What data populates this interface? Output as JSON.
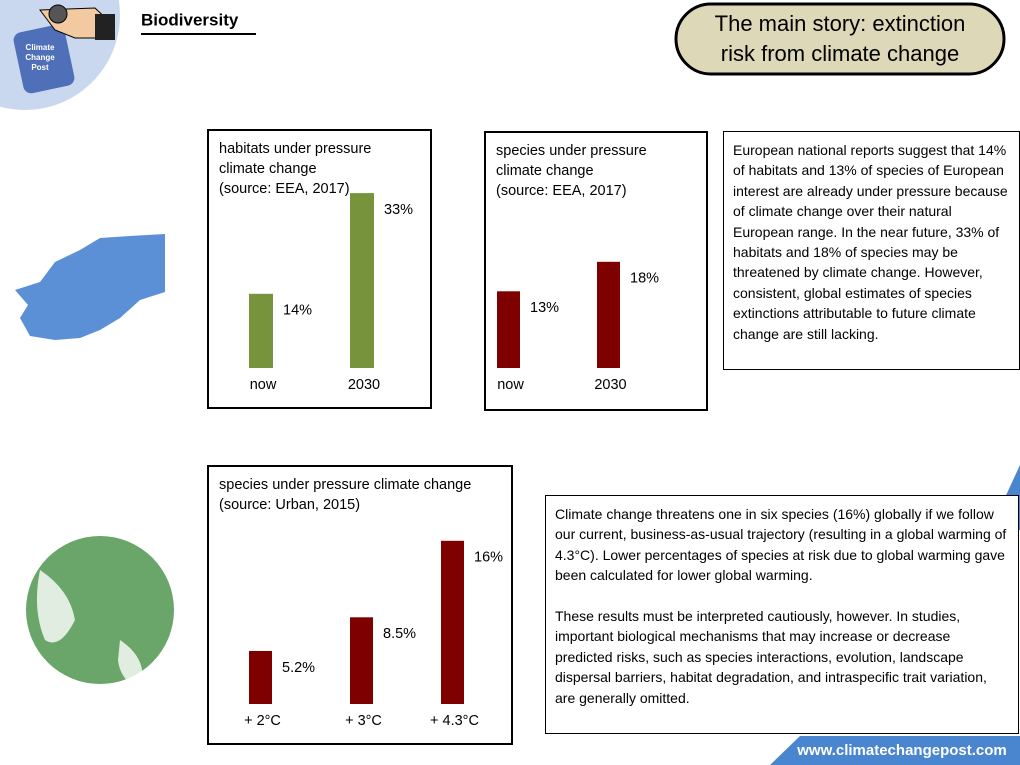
{
  "header": {
    "title": "Biodiversity",
    "story": [
      "The main story: extinction",
      "risk from climate change"
    ],
    "logo": [
      "Climate",
      "Change",
      "Post"
    ]
  },
  "chart_data": [
    {
      "type": "bar",
      "title": [
        "habitats under pressure",
        "climate change",
        "(source: EEA, 2017)"
      ],
      "categories": [
        "now",
        "2030"
      ],
      "values": [
        14,
        33
      ],
      "value_labels": [
        "14%",
        "33%"
      ],
      "color": "#77933c"
    },
    {
      "type": "bar",
      "title": [
        "species under pressure",
        "climate change",
        "(source: EEA, 2017)"
      ],
      "categories": [
        "now",
        "2030"
      ],
      "values": [
        13,
        18
      ],
      "value_labels": [
        "13%",
        "18%"
      ],
      "color": "#7f0000"
    },
    {
      "type": "bar",
      "title": [
        "species under pressure climate change",
        "(source: Urban, 2015)"
      ],
      "categories": [
        "+ 2°C",
        "+ 3°C",
        "+ 4.3°C"
      ],
      "values": [
        5.2,
        8.5,
        16
      ],
      "value_labels": [
        "5.2%",
        "8.5%",
        "16%"
      ],
      "color": "#7f0000"
    }
  ],
  "notes": [
    "European national reports suggest that 14% of habitats and 13% of species of European interest are already under pressure because of climate change over their natural European range. In the near future, 33% of habitats and 18% of species may be threatened by climate change. However, consistent, global estimates of species extinctions attributable to future climate change are still lacking.",
    "Climate change threatens one in six species (16%) globally if we follow our current, business-as-usual trajectory (resulting in a global warming of 4.3°C). Lower percentages of species at risk due to global warming gave been calculated for lower global warming.",
    "These results must be interpreted cautiously, however. In studies, important biological mechanisms that may increase or decrease predicted risks, such as species interactions, evolution, landscape dispersal barriers, habitat degradation, and intraspecific trait variation, are generally omitted."
  ],
  "footer": "www.climatechangepost.com"
}
